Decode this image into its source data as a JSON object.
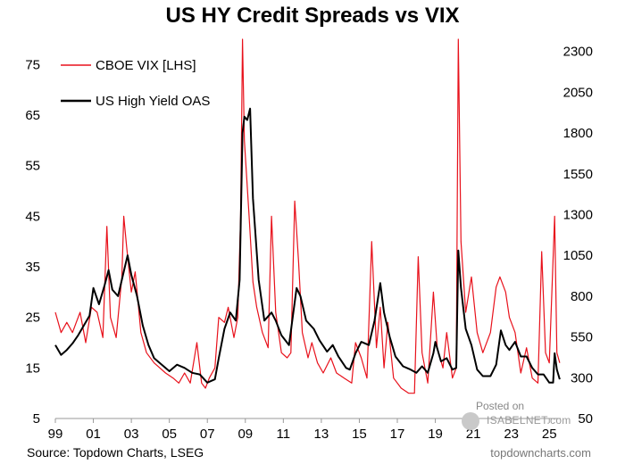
{
  "chart_data": {
    "type": "line",
    "title": "US HY Credit Spreads vs VIX",
    "x_tick_labels": [
      "99",
      "01",
      "03",
      "05",
      "07",
      "09",
      "11",
      "13",
      "15",
      "17",
      "19",
      "21",
      "23",
      "25"
    ],
    "x_range": [
      1999.0,
      2025.6
    ],
    "y_left": {
      "ticks": [
        5,
        15,
        25,
        35,
        45,
        55,
        65,
        75
      ],
      "range": [
        5,
        80
      ]
    },
    "y_right": {
      "ticks": [
        50,
        300,
        550,
        800,
        1050,
        1300,
        1550,
        1800,
        2050,
        2300
      ],
      "range": [
        50,
        2375
      ]
    },
    "legend_position": "top-left",
    "series": [
      {
        "name": "CBOE VIX [LHS]",
        "axis": "left",
        "color": "#e8111b",
        "points": [
          [
            1999.0,
            26
          ],
          [
            1999.3,
            22
          ],
          [
            1999.6,
            24
          ],
          [
            1999.9,
            22
          ],
          [
            2000.1,
            24
          ],
          [
            2000.3,
            26
          ],
          [
            2000.6,
            20
          ],
          [
            2000.9,
            27
          ],
          [
            2001.2,
            26
          ],
          [
            2001.5,
            21
          ],
          [
            2001.71,
            43
          ],
          [
            2001.9,
            25
          ],
          [
            2002.2,
            21
          ],
          [
            2002.5,
            33
          ],
          [
            2002.6,
            45
          ],
          [
            2002.75,
            39
          ],
          [
            2003.0,
            30
          ],
          [
            2003.2,
            34
          ],
          [
            2003.5,
            22
          ],
          [
            2003.8,
            18
          ],
          [
            2004.2,
            16
          ],
          [
            2004.5,
            15
          ],
          [
            2004.8,
            14
          ],
          [
            2005.2,
            13
          ],
          [
            2005.5,
            12
          ],
          [
            2005.8,
            14
          ],
          [
            2006.1,
            12
          ],
          [
            2006.45,
            20
          ],
          [
            2006.7,
            12
          ],
          [
            2006.9,
            11
          ],
          [
            2007.1,
            13
          ],
          [
            2007.4,
            15
          ],
          [
            2007.6,
            25
          ],
          [
            2007.9,
            24
          ],
          [
            2008.1,
            27
          ],
          [
            2008.4,
            21
          ],
          [
            2008.6,
            25
          ],
          [
            2008.75,
            45
          ],
          [
            2008.85,
            80
          ],
          [
            2008.95,
            60
          ],
          [
            2009.2,
            45
          ],
          [
            2009.4,
            32
          ],
          [
            2009.6,
            27
          ],
          [
            2009.9,
            22
          ],
          [
            2010.2,
            19
          ],
          [
            2010.38,
            45
          ],
          [
            2010.6,
            26
          ],
          [
            2010.9,
            18
          ],
          [
            2011.2,
            17
          ],
          [
            2011.4,
            18
          ],
          [
            2011.6,
            48
          ],
          [
            2011.8,
            36
          ],
          [
            2012.0,
            22
          ],
          [
            2012.3,
            17
          ],
          [
            2012.5,
            20
          ],
          [
            2012.8,
            16
          ],
          [
            2013.1,
            14
          ],
          [
            2013.5,
            17
          ],
          [
            2013.8,
            14
          ],
          [
            2014.2,
            13
          ],
          [
            2014.6,
            12
          ],
          [
            2014.8,
            20
          ],
          [
            2015.1,
            17
          ],
          [
            2015.4,
            13
          ],
          [
            2015.65,
            40
          ],
          [
            2015.9,
            19
          ],
          [
            2016.1,
            27
          ],
          [
            2016.3,
            15
          ],
          [
            2016.5,
            24
          ],
          [
            2016.8,
            13
          ],
          [
            2017.2,
            11
          ],
          [
            2017.6,
            10
          ],
          [
            2017.9,
            10
          ],
          [
            2018.1,
            37
          ],
          [
            2018.3,
            18
          ],
          [
            2018.6,
            12
          ],
          [
            2018.9,
            30
          ],
          [
            2019.1,
            19
          ],
          [
            2019.4,
            15
          ],
          [
            2019.6,
            22
          ],
          [
            2019.9,
            13
          ],
          [
            2020.1,
            15
          ],
          [
            2020.21,
            82
          ],
          [
            2020.35,
            40
          ],
          [
            2020.6,
            26
          ],
          [
            2020.9,
            33
          ],
          [
            2021.2,
            22
          ],
          [
            2021.5,
            18
          ],
          [
            2021.9,
            22
          ],
          [
            2022.2,
            31
          ],
          [
            2022.4,
            33
          ],
          [
            2022.7,
            30
          ],
          [
            2022.9,
            25
          ],
          [
            2023.2,
            22
          ],
          [
            2023.5,
            14
          ],
          [
            2023.8,
            19
          ],
          [
            2024.1,
            13
          ],
          [
            2024.4,
            12
          ],
          [
            2024.6,
            38
          ],
          [
            2024.8,
            18
          ],
          [
            2025.0,
            16
          ],
          [
            2025.28,
            45
          ],
          [
            2025.4,
            18
          ],
          [
            2025.55,
            16
          ]
        ]
      },
      {
        "name": "US High Yield OAS",
        "axis": "right",
        "color": "#000000",
        "points": [
          [
            1999.0,
            500
          ],
          [
            1999.3,
            440
          ],
          [
            1999.6,
            470
          ],
          [
            1999.9,
            510
          ],
          [
            2000.2,
            560
          ],
          [
            2000.5,
            620
          ],
          [
            2000.8,
            680
          ],
          [
            2001.0,
            850
          ],
          [
            2001.3,
            750
          ],
          [
            2001.6,
            870
          ],
          [
            2001.8,
            960
          ],
          [
            2002.0,
            840
          ],
          [
            2002.3,
            800
          ],
          [
            2002.6,
            950
          ],
          [
            2002.8,
            1050
          ],
          [
            2003.0,
            930
          ],
          [
            2003.3,
            800
          ],
          [
            2003.6,
            620
          ],
          [
            2003.9,
            500
          ],
          [
            2004.2,
            420
          ],
          [
            2004.6,
            380
          ],
          [
            2005.0,
            340
          ],
          [
            2005.4,
            380
          ],
          [
            2005.8,
            360
          ],
          [
            2006.2,
            330
          ],
          [
            2006.6,
            320
          ],
          [
            2007.0,
            270
          ],
          [
            2007.4,
            290
          ],
          [
            2007.6,
            420
          ],
          [
            2007.9,
            600
          ],
          [
            2008.2,
            700
          ],
          [
            2008.5,
            650
          ],
          [
            2008.7,
            900
          ],
          [
            2008.85,
            1800
          ],
          [
            2008.95,
            1900
          ],
          [
            2009.1,
            1880
          ],
          [
            2009.25,
            1950
          ],
          [
            2009.4,
            1400
          ],
          [
            2009.7,
            900
          ],
          [
            2010.0,
            650
          ],
          [
            2010.38,
            700
          ],
          [
            2010.6,
            650
          ],
          [
            2010.9,
            560
          ],
          [
            2011.3,
            500
          ],
          [
            2011.7,
            850
          ],
          [
            2011.9,
            800
          ],
          [
            2012.2,
            650
          ],
          [
            2012.6,
            600
          ],
          [
            2012.9,
            530
          ],
          [
            2013.3,
            460
          ],
          [
            2013.6,
            500
          ],
          [
            2013.9,
            430
          ],
          [
            2014.3,
            360
          ],
          [
            2014.5,
            350
          ],
          [
            2014.8,
            450
          ],
          [
            2015.1,
            520
          ],
          [
            2015.5,
            500
          ],
          [
            2015.8,
            650
          ],
          [
            2016.1,
            880
          ],
          [
            2016.3,
            700
          ],
          [
            2016.6,
            550
          ],
          [
            2016.9,
            430
          ],
          [
            2017.3,
            370
          ],
          [
            2017.7,
            350
          ],
          [
            2018.0,
            330
          ],
          [
            2018.3,
            370
          ],
          [
            2018.6,
            330
          ],
          [
            2018.9,
            450
          ],
          [
            2019.0,
            520
          ],
          [
            2019.3,
            400
          ],
          [
            2019.6,
            420
          ],
          [
            2019.9,
            350
          ],
          [
            2020.1,
            360
          ],
          [
            2020.21,
            1080
          ],
          [
            2020.35,
            850
          ],
          [
            2020.6,
            600
          ],
          [
            2020.9,
            500
          ],
          [
            2021.2,
            350
          ],
          [
            2021.5,
            310
          ],
          [
            2021.9,
            310
          ],
          [
            2022.2,
            380
          ],
          [
            2022.45,
            590
          ],
          [
            2022.7,
            500
          ],
          [
            2022.9,
            470
          ],
          [
            2023.2,
            520
          ],
          [
            2023.5,
            430
          ],
          [
            2023.8,
            430
          ],
          [
            2024.1,
            360
          ],
          [
            2024.4,
            320
          ],
          [
            2024.7,
            320
          ],
          [
            2025.0,
            270
          ],
          [
            2025.2,
            270
          ],
          [
            2025.28,
            450
          ],
          [
            2025.4,
            350
          ],
          [
            2025.55,
            290
          ]
        ]
      }
    ]
  },
  "source": "Source: Topdown Charts, LSEG",
  "credit": "topdowncharts.com",
  "watermark": {
    "posted": "Posted on",
    "name": "ISABELNET.com"
  }
}
